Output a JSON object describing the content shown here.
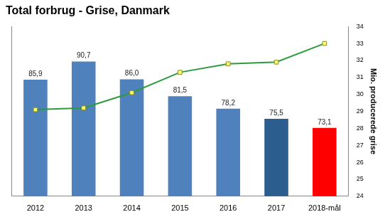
{
  "chart_data": {
    "type": "bar",
    "title": "Total forbrug - Grise, Danmark",
    "categories": [
      "2012",
      "2013",
      "2014",
      "2015",
      "2016",
      "2017",
      "2018-mål"
    ],
    "ylim": [
      55,
      100
    ],
    "y2lim": [
      24,
      34
    ],
    "y2ticks": [
      24,
      25,
      26,
      27,
      28,
      29,
      30,
      31,
      32,
      33,
      34
    ],
    "y2_label": "Mio. producerede grise",
    "grid": false,
    "series": [
      {
        "type": "bar",
        "colors": [
          "#4f81bd",
          "#4f81bd",
          "#4f81bd",
          "#4f81bd",
          "#4f81bd",
          "#2c5d8f",
          "#ff0000"
        ],
        "values": [
          85.9,
          90.7,
          86.0,
          81.5,
          78.2,
          75.5,
          73.1
        ],
        "value_labels": [
          "85,9",
          "90,7",
          "86,0",
          "81,5",
          "78,2",
          "75,5",
          "73,1"
        ],
        "data_labels": true
      },
      {
        "type": "line",
        "color": "#2e9a3e",
        "marker": "square",
        "axis": "y2",
        "values": [
          29.1,
          29.2,
          30.1,
          31.3,
          31.8,
          31.9,
          33.0
        ]
      }
    ]
  }
}
